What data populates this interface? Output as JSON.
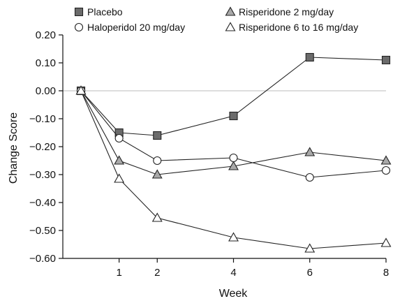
{
  "chart_data": {
    "type": "line",
    "xlabel": "Week",
    "ylabel": "Change Score",
    "x": [
      0,
      1,
      2,
      4,
      6,
      8
    ],
    "x_tick_values": [
      1,
      2,
      4,
      6,
      8
    ],
    "x_tick_labels": [
      "1",
      "2",
      "4",
      "6",
      "8"
    ],
    "xlim": [
      0,
      8
    ],
    "ylim": [
      -0.6,
      0.2
    ],
    "y_tick_values": [
      0.2,
      0.1,
      0.0,
      -0.1,
      -0.2,
      -0.3,
      -0.4,
      -0.5,
      -0.6
    ],
    "y_tick_labels": [
      "0.20",
      "0.10",
      "0.00",
      "−0.10",
      "−0.20",
      "−0.30",
      "−0.40",
      "−0.50",
      "−0.60"
    ],
    "zero_reference_line": true,
    "legend_position": "top",
    "series": [
      {
        "name": "Placebo",
        "marker": "square",
        "fill": "#6b6b6b",
        "values": [
          0.0,
          -0.15,
          -0.16,
          -0.09,
          0.12,
          0.11
        ]
      },
      {
        "name": "Risperidone 2 mg/day",
        "marker": "triangle",
        "fill": "#a9a9a9",
        "values": [
          0.0,
          -0.25,
          -0.3,
          -0.27,
          -0.22,
          -0.25
        ]
      },
      {
        "name": "Haloperidol 20 mg/day",
        "marker": "circle",
        "fill": "#ffffff",
        "values": [
          0.0,
          -0.17,
          -0.25,
          -0.24,
          -0.31,
          -0.285
        ]
      },
      {
        "name": "Risperidone 6 to 16 mg/day",
        "marker": "triangle",
        "fill": "#ffffff",
        "values": [
          0.0,
          -0.315,
          -0.455,
          -0.525,
          -0.565,
          -0.545
        ]
      }
    ]
  }
}
